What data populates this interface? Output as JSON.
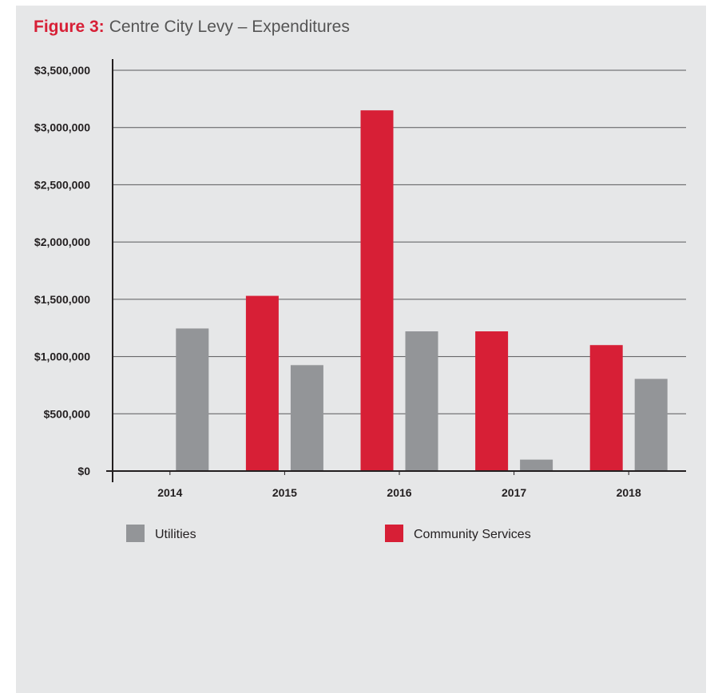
{
  "figure": {
    "label": "Figure 3:",
    "title": "Centre City Levy – Expenditures"
  },
  "chart_data": {
    "type": "bar",
    "categories": [
      "2014",
      "2015",
      "2016",
      "2017",
      "2018"
    ],
    "series": [
      {
        "name": "Community Services",
        "color": "#d71f36",
        "values": [
          null,
          1530000,
          3150000,
          1220000,
          1100000
        ]
      },
      {
        "name": "Utilities",
        "color": "#939598",
        "values": [
          1245000,
          925000,
          1220000,
          100000,
          805000
        ]
      }
    ],
    "ylim": [
      0,
      3500000
    ],
    "yticks": [
      "$0",
      "$500,000",
      "$1,000,000",
      "$1,500,000",
      "$2,000,000",
      "$2,500,000",
      "$3,000,000",
      "$3,500,000"
    ],
    "ytick_values": [
      0,
      500000,
      1000000,
      1500000,
      2000000,
      2500000,
      3000000,
      3500000
    ],
    "grid": true,
    "legend_position": "bottom",
    "legend": [
      {
        "label": "Utilities",
        "color": "#939598"
      },
      {
        "label": "Community Services",
        "color": "#d71f36"
      }
    ]
  }
}
